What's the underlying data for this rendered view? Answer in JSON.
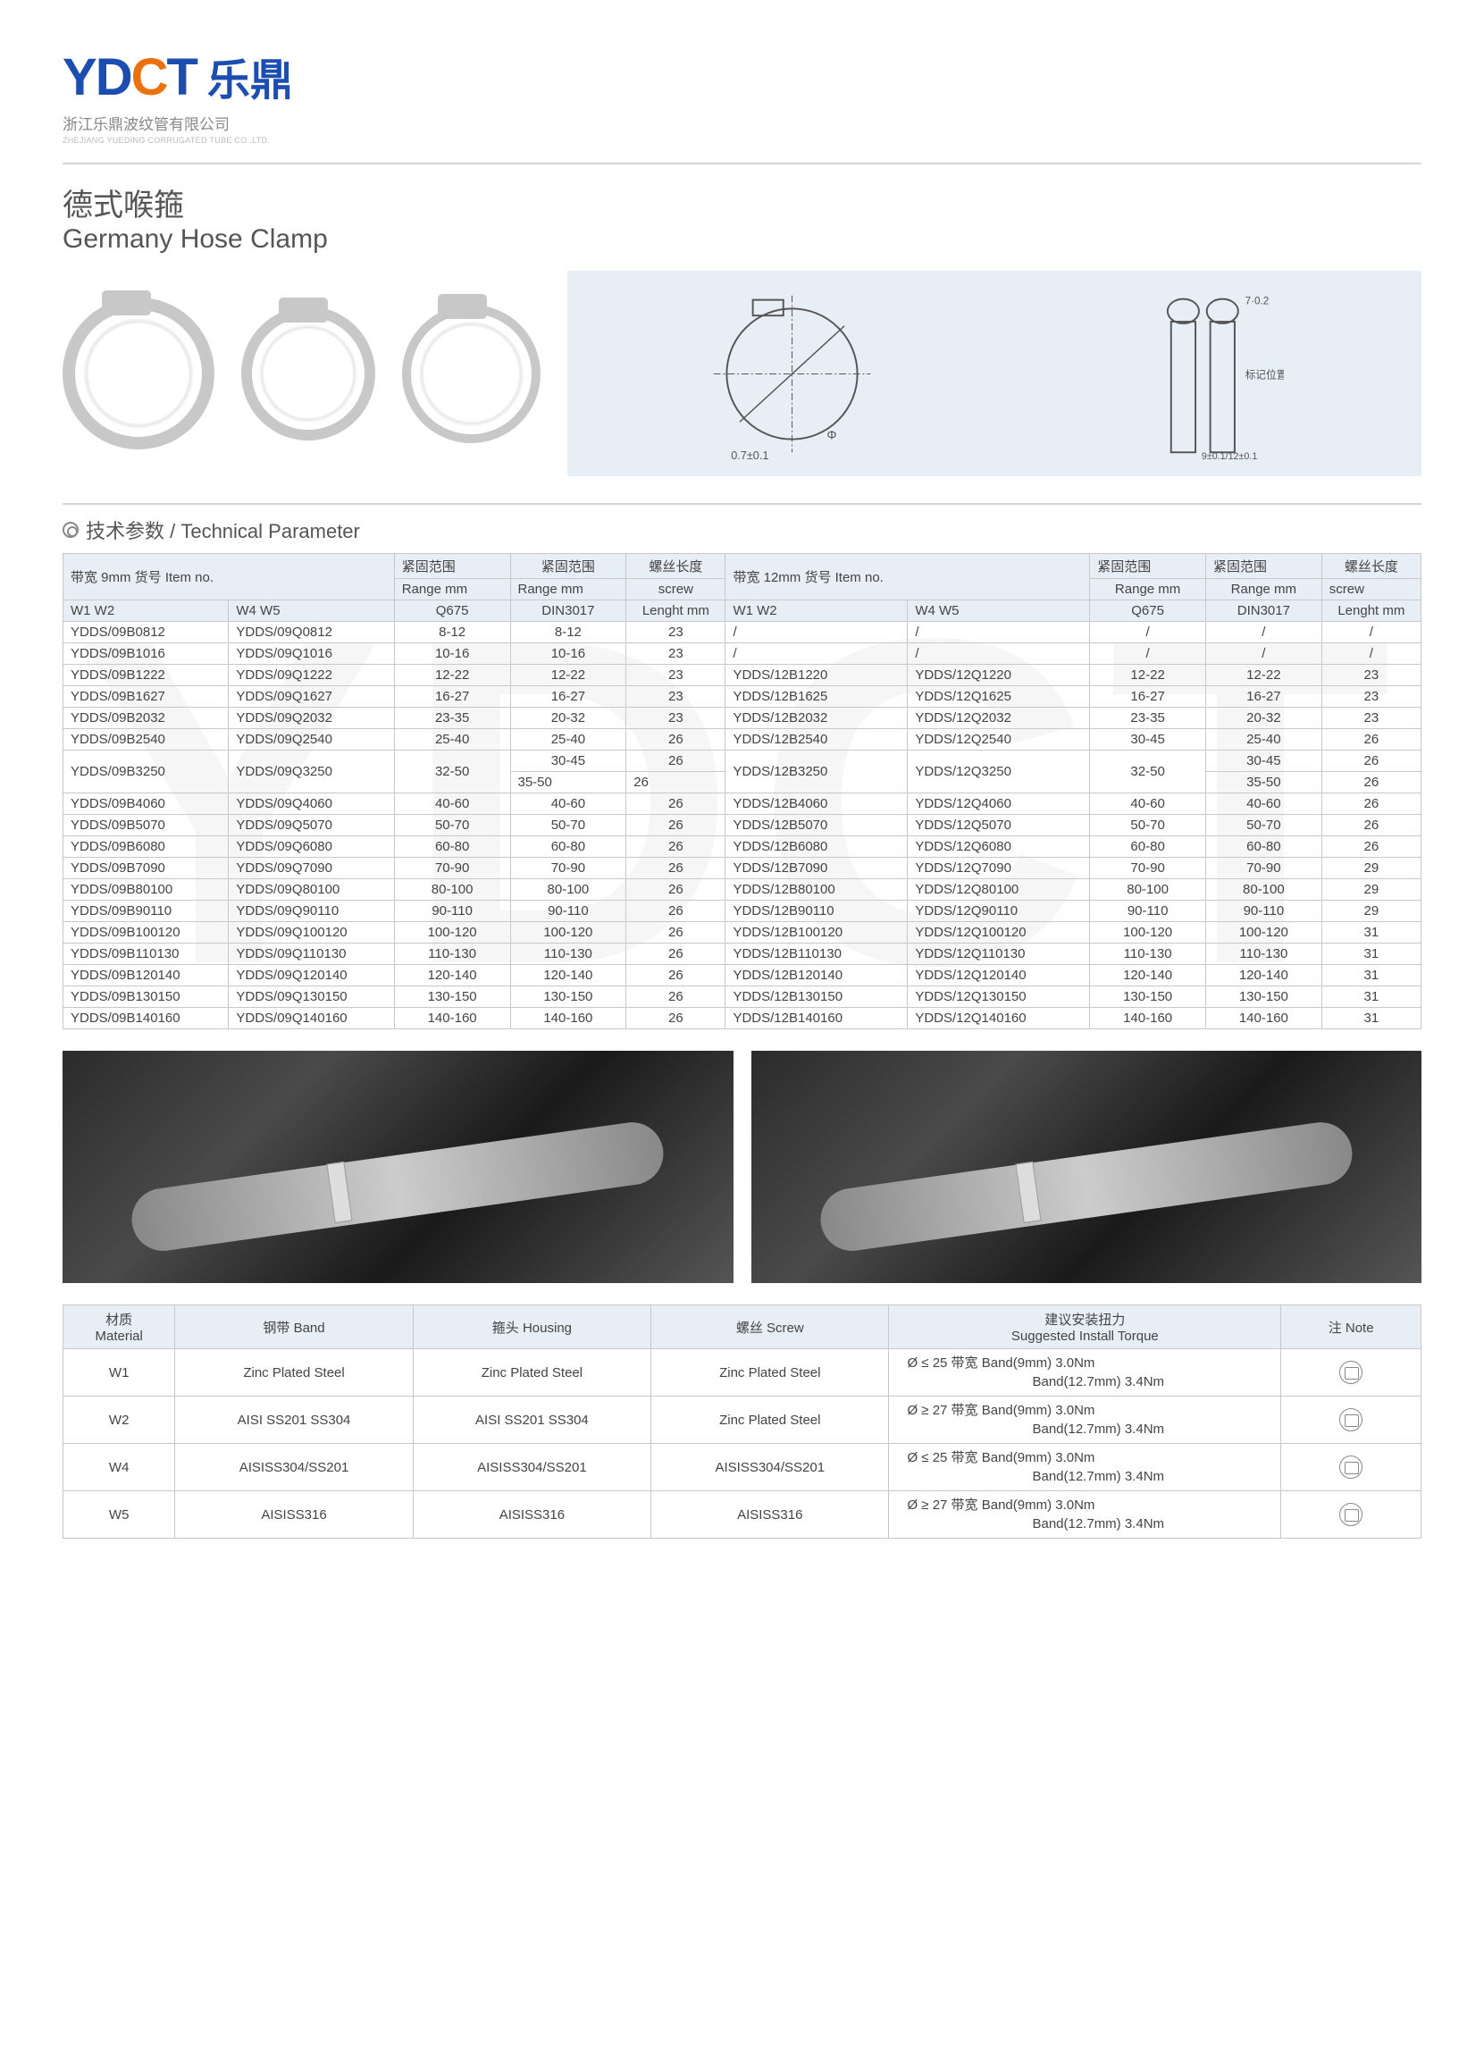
{
  "logo": {
    "y": "Y",
    "d": "D",
    "c": "C",
    "t": "T",
    "cn": "乐鼎"
  },
  "company_cn": "浙江乐鼎波纹管有限公司",
  "company_en": "ZHEJIANG YUEDING CORRUGATED TUBE CO.,LTD.",
  "title_cn": "德式喉箍",
  "title_en": "Germany Hose Clamp",
  "diagram_labels": {
    "d1": "0.7±0.1",
    "d2": "Φ",
    "d3": "7·0.2",
    "d4": "标记位置",
    "d5": "9±0.1/12±0.1"
  },
  "section_title": "技术参数 / Technical Parameter",
  "headers": {
    "h1a": "带宽 9mm 货号 Item no.",
    "h1b": "紧固范围",
    "h1c": "紧固范围",
    "h1d": "螺丝长度",
    "h1e": "带宽 12mm 货号 Item no.",
    "h1f": "紧固范围",
    "h1g": "紧固范围",
    "h1h": "螺丝长度",
    "r1": "Range mm",
    "r2": "Range mm",
    "r3": "screw",
    "r4": "Range mm",
    "r5": "Range mm",
    "r6": "screw",
    "s1": "W1 W2",
    "s2": "W4 W5",
    "s3": "Q675",
    "s4": "DIN3017",
    "s5": "Lenght mm",
    "s6": "W1 W2",
    "s7": "W4 W5",
    "s8": "Q675",
    "s9": "DIN3017",
    "s10": "Lenght mm"
  },
  "rows": [
    [
      "YDDS/09B0812",
      "YDDS/09Q0812",
      "8-12",
      "8-12",
      "23",
      "/",
      "/",
      "/",
      "/",
      "/"
    ],
    [
      "YDDS/09B1016",
      "YDDS/09Q1016",
      "10-16",
      "10-16",
      "23",
      "/",
      "/",
      "/",
      "/",
      "/"
    ],
    [
      "YDDS/09B1222",
      "YDDS/09Q1222",
      "12-22",
      "12-22",
      "23",
      "YDDS/12B1220",
      "YDDS/12Q1220",
      "12-22",
      "12-22",
      "23"
    ],
    [
      "YDDS/09B1627",
      "YDDS/09Q1627",
      "16-27",
      "16-27",
      "23",
      "YDDS/12B1625",
      "YDDS/12Q1625",
      "16-27",
      "16-27",
      "23"
    ],
    [
      "YDDS/09B2032",
      "YDDS/09Q2032",
      "23-35",
      "20-32",
      "23",
      "YDDS/12B2032",
      "YDDS/12Q2032",
      "23-35",
      "20-32",
      "23"
    ],
    [
      "YDDS/09B2540",
      "YDDS/09Q2540",
      "25-40",
      "25-40",
      "26",
      "YDDS/12B2540",
      "YDDS/12Q2540",
      "30-45",
      "25-40",
      "26"
    ]
  ],
  "split_row": {
    "a": "YDDS/09B3250",
    "b": "YDDS/09Q3250",
    "c": "32-50",
    "d1": "30-45",
    "e1": "26",
    "d2": "35-50",
    "e2": "26",
    "f": "YDDS/12B3250",
    "g": "YDDS/12Q3250",
    "h": "32-50",
    "i1": "30-45",
    "j1": "26",
    "i2": "35-50",
    "j2": "26"
  },
  "rows2": [
    [
      "YDDS/09B4060",
      "YDDS/09Q4060",
      "40-60",
      "40-60",
      "26",
      "YDDS/12B4060",
      "YDDS/12Q4060",
      "40-60",
      "40-60",
      "26"
    ],
    [
      "YDDS/09B5070",
      "YDDS/09Q5070",
      "50-70",
      "50-70",
      "26",
      "YDDS/12B5070",
      "YDDS/12Q5070",
      "50-70",
      "50-70",
      "26"
    ],
    [
      "YDDS/09B6080",
      "YDDS/09Q6080",
      "60-80",
      "60-80",
      "26",
      "YDDS/12B6080",
      "YDDS/12Q6080",
      "60-80",
      "60-80",
      "26"
    ],
    [
      "YDDS/09B7090",
      "YDDS/09Q7090",
      "70-90",
      "70-90",
      "26",
      "YDDS/12B7090",
      "YDDS/12Q7090",
      "70-90",
      "70-90",
      "29"
    ],
    [
      "YDDS/09B80100",
      "YDDS/09Q80100",
      "80-100",
      "80-100",
      "26",
      "YDDS/12B80100",
      "YDDS/12Q80100",
      "80-100",
      "80-100",
      "29"
    ],
    [
      "YDDS/09B90110",
      "YDDS/09Q90110",
      "90-110",
      "90-110",
      "26",
      "YDDS/12B90110",
      "YDDS/12Q90110",
      "90-110",
      "90-110",
      "29"
    ],
    [
      "YDDS/09B100120",
      "YDDS/09Q100120",
      "100-120",
      "100-120",
      "26",
      "YDDS/12B100120",
      "YDDS/12Q100120",
      "100-120",
      "100-120",
      "31"
    ],
    [
      "YDDS/09B110130",
      "YDDS/09Q110130",
      "110-130",
      "110-130",
      "26",
      "YDDS/12B110130",
      "YDDS/12Q110130",
      "110-130",
      "110-130",
      "31"
    ],
    [
      "YDDS/09B120140",
      "YDDS/09Q120140",
      "120-140",
      "120-140",
      "26",
      "YDDS/12B120140",
      "YDDS/12Q120140",
      "120-140",
      "120-140",
      "31"
    ],
    [
      "YDDS/09B130150",
      "YDDS/09Q130150",
      "130-150",
      "130-150",
      "26",
      "YDDS/12B130150",
      "YDDS/12Q130150",
      "130-150",
      "130-150",
      "31"
    ],
    [
      "YDDS/09B140160",
      "YDDS/09Q140160",
      "140-160",
      "140-160",
      "26",
      "YDDS/12B140160",
      "YDDS/12Q140160",
      "140-160",
      "140-160",
      "31"
    ]
  ],
  "mat_headers": {
    "m1": "材质",
    "m1b": "Material",
    "m2": "钢带 Band",
    "m3": "箍头 Housing",
    "m4": "螺丝 Screw",
    "m5": "建议安装扭力",
    "m5b": "Suggested Install Torque",
    "m6": "注 Note"
  },
  "mat_rows": [
    {
      "w": "W1",
      "band": "Zinc Plated Steel",
      "housing": "Zinc Plated Steel",
      "screw": "Zinc Plated Steel",
      "t1": "Ø ≤ 25 带宽 Band(9mm)    3.0Nm",
      "t2": "Band(12.7mm) 3.4Nm"
    },
    {
      "w": "W2",
      "band": "AISI SS201 SS304",
      "housing": "AISI SS201 SS304",
      "screw": "Zinc Plated Steel",
      "t1": "Ø ≥ 27 带宽 Band(9mm)    3.0Nm",
      "t2": "Band(12.7mm) 3.4Nm"
    },
    {
      "w": "W4",
      "band": "AISISS304/SS201",
      "housing": "AISISS304/SS201",
      "screw": "AISISS304/SS201",
      "t1": "Ø ≤ 25 带宽 Band(9mm)    3.0Nm",
      "t2": "Band(12.7mm) 3.4Nm"
    },
    {
      "w": "W5",
      "band": "AISISS316",
      "housing": "AISISS316",
      "screw": "AISISS316",
      "t1": "Ø ≥ 27 带宽 Band(9mm)    3.0Nm",
      "t2": "Band(12.7mm) 3.4Nm"
    }
  ]
}
